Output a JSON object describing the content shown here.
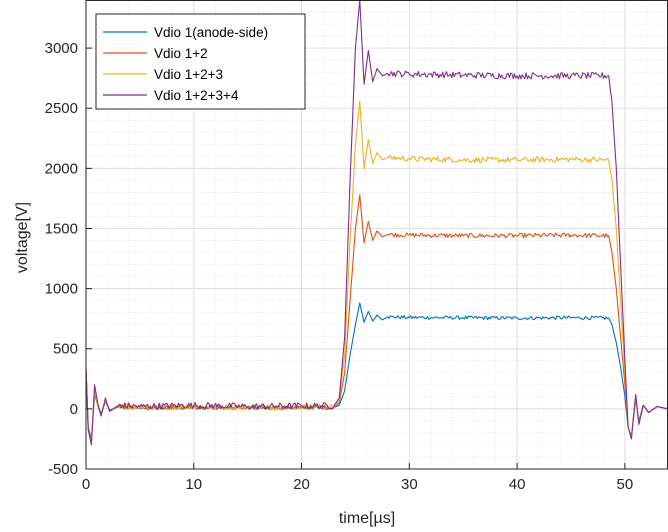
{
  "chart_data": {
    "type": "line",
    "xlabel": "time[µs]",
    "ylabel": "voltage[V]",
    "xlim": [
      0,
      54
    ],
    "ylim": [
      -500,
      3400
    ],
    "xticks": [
      0,
      10,
      20,
      30,
      40,
      50
    ],
    "yticks": [
      -500,
      0,
      500,
      1000,
      1500,
      2000,
      2500,
      3000
    ],
    "grid": true,
    "minor_grid": true,
    "legend_position": "top-left",
    "series": [
      {
        "name": "Vdio 1(anode-side)",
        "color": "#0072BD",
        "points": [
          [
            0,
            330
          ],
          [
            0.2,
            -150
          ],
          [
            0.5,
            -250
          ],
          [
            0.8,
            120
          ],
          [
            1.1,
            30
          ],
          [
            1.4,
            -40
          ],
          [
            1.8,
            60
          ],
          [
            2.2,
            -10
          ],
          [
            3,
            15
          ],
          [
            5,
            10
          ],
          [
            10,
            12
          ],
          [
            15,
            8
          ],
          [
            20,
            10
          ],
          [
            23,
            12
          ],
          [
            23.5,
            30
          ],
          [
            24,
            150
          ],
          [
            24.5,
            450
          ],
          [
            25,
            700
          ],
          [
            25.4,
            880
          ],
          [
            25.8,
            720
          ],
          [
            26.2,
            810
          ],
          [
            26.6,
            730
          ],
          [
            27,
            780
          ],
          [
            27.5,
            740
          ],
          [
            28,
            765
          ],
          [
            30,
            760
          ],
          [
            35,
            758
          ],
          [
            40,
            755
          ],
          [
            45,
            758
          ],
          [
            48.5,
            755
          ],
          [
            48.8,
            700
          ],
          [
            49.2,
            550
          ],
          [
            49.6,
            350
          ],
          [
            50,
            100
          ],
          [
            50.3,
            -150
          ],
          [
            50.6,
            -230
          ],
          [
            51,
            80
          ],
          [
            51.3,
            -100
          ],
          [
            51.7,
            30
          ],
          [
            52.2,
            -30
          ],
          [
            53,
            20
          ],
          [
            54,
            0
          ]
        ]
      },
      {
        "name": "Vdio 1+2",
        "color": "#D95319",
        "points": [
          [
            0,
            330
          ],
          [
            0.2,
            -160
          ],
          [
            0.5,
            -270
          ],
          [
            0.8,
            150
          ],
          [
            1.1,
            20
          ],
          [
            1.4,
            -50
          ],
          [
            1.8,
            70
          ],
          [
            2.2,
            -20
          ],
          [
            3,
            20
          ],
          [
            5,
            10
          ],
          [
            10,
            15
          ],
          [
            15,
            10
          ],
          [
            20,
            12
          ],
          [
            23,
            15
          ],
          [
            23.5,
            50
          ],
          [
            24,
            300
          ],
          [
            24.5,
            900
          ],
          [
            25,
            1500
          ],
          [
            25.4,
            1780
          ],
          [
            25.8,
            1380
          ],
          [
            26.2,
            1560
          ],
          [
            26.6,
            1400
          ],
          [
            27,
            1480
          ],
          [
            27.5,
            1430
          ],
          [
            28,
            1450
          ],
          [
            30,
            1445
          ],
          [
            35,
            1440
          ],
          [
            40,
            1440
          ],
          [
            45,
            1445
          ],
          [
            48.5,
            1440
          ],
          [
            48.8,
            1300
          ],
          [
            49.2,
            1000
          ],
          [
            49.6,
            600
          ],
          [
            50,
            200
          ],
          [
            50.3,
            -150
          ],
          [
            50.6,
            -240
          ],
          [
            51,
            100
          ],
          [
            51.3,
            -120
          ],
          [
            51.7,
            30
          ],
          [
            52.2,
            -30
          ],
          [
            53,
            20
          ],
          [
            54,
            0
          ]
        ]
      },
      {
        "name": "Vdio 1+2+3",
        "color": "#EDB120",
        "points": [
          [
            0,
            330
          ],
          [
            0.2,
            -170
          ],
          [
            0.5,
            -280
          ],
          [
            0.8,
            160
          ],
          [
            1.1,
            25
          ],
          [
            1.4,
            -55
          ],
          [
            1.8,
            75
          ],
          [
            2.2,
            -20
          ],
          [
            3,
            25
          ],
          [
            5,
            12
          ],
          [
            10,
            18
          ],
          [
            15,
            12
          ],
          [
            20,
            15
          ],
          [
            23,
            18
          ],
          [
            23.5,
            70
          ],
          [
            24,
            450
          ],
          [
            24.5,
            1400
          ],
          [
            25,
            2200
          ],
          [
            25.4,
            2560
          ],
          [
            25.8,
            2000
          ],
          [
            26.2,
            2240
          ],
          [
            26.6,
            2040
          ],
          [
            27,
            2130
          ],
          [
            27.5,
            2070
          ],
          [
            28,
            2090
          ],
          [
            30,
            2080
          ],
          [
            35,
            2070
          ],
          [
            40,
            2070
          ],
          [
            45,
            2075
          ],
          [
            48.5,
            2070
          ],
          [
            48.8,
            1900
          ],
          [
            49.2,
            1500
          ],
          [
            49.6,
            900
          ],
          [
            50,
            300
          ],
          [
            50.3,
            -150
          ],
          [
            50.6,
            -240
          ],
          [
            51,
            110
          ],
          [
            51.3,
            -120
          ],
          [
            51.7,
            30
          ],
          [
            52.2,
            -30
          ],
          [
            53,
            20
          ],
          [
            54,
            0
          ]
        ]
      },
      {
        "name": "Vdio 1+2+3+4",
        "color": "#7E2F8E",
        "points": [
          [
            0,
            350
          ],
          [
            0.2,
            -170
          ],
          [
            0.5,
            -300
          ],
          [
            0.8,
            200
          ],
          [
            1.1,
            40
          ],
          [
            1.4,
            -60
          ],
          [
            1.8,
            90
          ],
          [
            2.2,
            -20
          ],
          [
            3,
            30
          ],
          [
            5,
            20
          ],
          [
            10,
            30
          ],
          [
            15,
            20
          ],
          [
            20,
            25
          ],
          [
            23,
            25
          ],
          [
            23.5,
            90
          ],
          [
            24,
            600
          ],
          [
            24.5,
            1900
          ],
          [
            25,
            3000
          ],
          [
            25.4,
            3400
          ],
          [
            25.8,
            2700
          ],
          [
            26.2,
            2980
          ],
          [
            26.6,
            2720
          ],
          [
            27,
            2830
          ],
          [
            27.5,
            2770
          ],
          [
            28,
            2790
          ],
          [
            30,
            2785
          ],
          [
            35,
            2775
          ],
          [
            40,
            2770
          ],
          [
            45,
            2770
          ],
          [
            48.5,
            2770
          ],
          [
            48.8,
            2550
          ],
          [
            49.2,
            2000
          ],
          [
            49.6,
            1200
          ],
          [
            50,
            400
          ],
          [
            50.3,
            -150
          ],
          [
            50.6,
            -250
          ],
          [
            51,
            120
          ],
          [
            51.3,
            -130
          ],
          [
            51.7,
            30
          ],
          [
            52.2,
            -30
          ],
          [
            53,
            20
          ],
          [
            54,
            0
          ]
        ]
      }
    ]
  }
}
